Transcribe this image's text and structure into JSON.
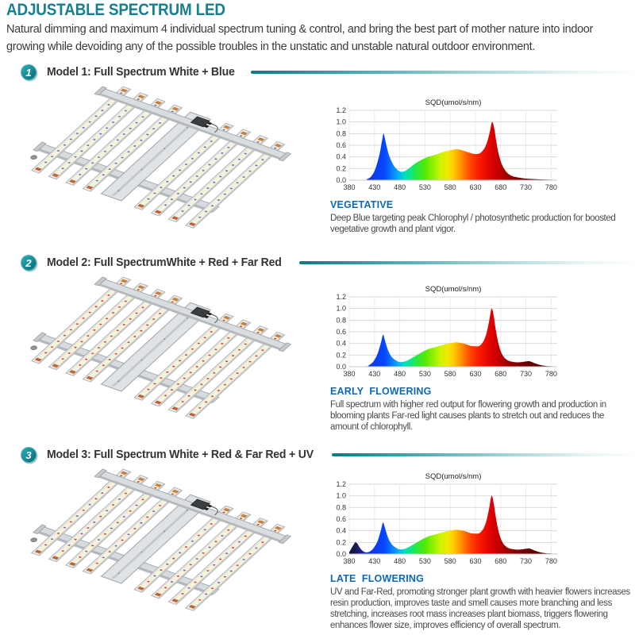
{
  "page": {
    "title": "ADJUSTABLE SPECTRUM LED",
    "intro_lines": [
      "Natural dimming and maximum 4 individual spectrum tuning & control, and bring the best part of mother nature into indoor",
      "growing while devoiding any of the possible troubles in the unstatic and unstable natural outdoor environment."
    ]
  },
  "accent_colors": {
    "heading_teal": "#17808c",
    "divider_teal": "#0d7a85",
    "stage_blue": "#1068b3",
    "body_text": "#3b3b3b"
  },
  "sections": [
    {
      "badge": "1",
      "model_label": "Model 1: Full Spectrum White + Blue",
      "stage": "VEGETATIVE",
      "description": "Deep Blue targeting peak Chlorophyl / photosynthetic production for boosted vegetative growth and plant vigor.",
      "diode_colors": [
        "#5b6ed6"
      ]
    },
    {
      "badge": "2",
      "model_label": "Model 2: Full SpectrumWhite + Red + Far Red",
      "stage": "EARLY  FLOWERING",
      "description": "Full spectrum with higher red output for flowering growth and production in blooming plants Far-red light causes plants to stretch out and reduces the amount of chlorophyll.",
      "diode_colors": [
        "#d04434"
      ]
    },
    {
      "badge": "3",
      "model_label": "Model 3: Full Spectrum White + Red & Far Red + UV",
      "stage": "LATE  FLOWERING",
      "description": "UV and Far-Red, promoting stronger plant growth with heavier flowers increases resin production, improves taste and smell causes more branching and less stretching, increases root mass increases plant biomass, triggers flowering enhances flower size, improves efficiency of overall spectrum.",
      "diode_colors": [
        "#d04434",
        "#7a5ad0"
      ]
    }
  ],
  "spectrum_colors": [
    [
      380,
      "#131327"
    ],
    [
      395,
      "#1b1b5e"
    ],
    [
      410,
      "#1626c8"
    ],
    [
      430,
      "#0b3cf0"
    ],
    [
      450,
      "#0646ff"
    ],
    [
      465,
      "#0a7dff"
    ],
    [
      478,
      "#00b4f0"
    ],
    [
      490,
      "#00ddc0"
    ],
    [
      502,
      "#0ce87e"
    ],
    [
      515,
      "#2fe83c"
    ],
    [
      530,
      "#52e80a"
    ],
    [
      545,
      "#8cf000"
    ],
    [
      560,
      "#c8f400"
    ],
    [
      575,
      "#f2e800"
    ],
    [
      588,
      "#ffc800"
    ],
    [
      600,
      "#ff9600"
    ],
    [
      612,
      "#ff6400"
    ],
    [
      624,
      "#ff3a00"
    ],
    [
      636,
      "#fa1e00"
    ],
    [
      650,
      "#ee0a00"
    ],
    [
      662,
      "#dc0000"
    ],
    [
      675,
      "#c30000"
    ],
    [
      690,
      "#a50000"
    ],
    [
      710,
      "#830000"
    ],
    [
      735,
      "#650000"
    ],
    [
      760,
      "#4e0000"
    ],
    [
      790,
      "#3c0000"
    ]
  ],
  "chart_data": [
    {
      "type": "area",
      "title": "SQD(umol/s/nm)",
      "x_ticks": [
        380,
        430,
        480,
        530,
        580,
        630,
        680,
        730,
        780
      ],
      "y_ticks": [
        0,
        0.2,
        0.4,
        0.6,
        0.8,
        1.0,
        1.2
      ],
      "xlim": [
        380,
        792
      ],
      "ylim": [
        0,
        1.2
      ],
      "grid": true,
      "points": [
        [
          380,
          0
        ],
        [
          408,
          0
        ],
        [
          416,
          0.02
        ],
        [
          424,
          0.07
        ],
        [
          432,
          0.2
        ],
        [
          440,
          0.45
        ],
        [
          445,
          0.68
        ],
        [
          448,
          0.8
        ],
        [
          452,
          0.66
        ],
        [
          458,
          0.45
        ],
        [
          465,
          0.3
        ],
        [
          472,
          0.21
        ],
        [
          480,
          0.15
        ],
        [
          488,
          0.15
        ],
        [
          496,
          0.19
        ],
        [
          505,
          0.25
        ],
        [
          515,
          0.31
        ],
        [
          528,
          0.37
        ],
        [
          540,
          0.41
        ],
        [
          552,
          0.44
        ],
        [
          565,
          0.48
        ],
        [
          578,
          0.51
        ],
        [
          588,
          0.53
        ],
        [
          596,
          0.53
        ],
        [
          605,
          0.51
        ],
        [
          615,
          0.48
        ],
        [
          625,
          0.455
        ],
        [
          633,
          0.45
        ],
        [
          640,
          0.47
        ],
        [
          648,
          0.55
        ],
        [
          654,
          0.68
        ],
        [
          659,
          0.85
        ],
        [
          663,
          1.0
        ],
        [
          667,
          0.9
        ],
        [
          671,
          0.68
        ],
        [
          676,
          0.45
        ],
        [
          682,
          0.28
        ],
        [
          688,
          0.18
        ],
        [
          695,
          0.11
        ],
        [
          703,
          0.07
        ],
        [
          712,
          0.05
        ],
        [
          722,
          0.035
        ],
        [
          735,
          0.025
        ],
        [
          750,
          0.018
        ],
        [
          765,
          0.012
        ],
        [
          780,
          0.008
        ],
        [
          790,
          0.005
        ]
      ]
    },
    {
      "type": "area",
      "title": "SQD(umol/s/nm)",
      "x_ticks": [
        380,
        430,
        480,
        530,
        580,
        630,
        680,
        730,
        780
      ],
      "y_ticks": [
        0,
        0.2,
        0.4,
        0.6,
        0.8,
        1.0,
        1.2
      ],
      "xlim": [
        380,
        792
      ],
      "ylim": [
        0,
        1.2
      ],
      "grid": true,
      "points": [
        [
          380,
          0
        ],
        [
          412,
          0
        ],
        [
          420,
          0.03
        ],
        [
          428,
          0.09
        ],
        [
          436,
          0.22
        ],
        [
          443,
          0.42
        ],
        [
          447,
          0.55
        ],
        [
          451,
          0.44
        ],
        [
          457,
          0.28
        ],
        [
          464,
          0.17
        ],
        [
          472,
          0.11
        ],
        [
          480,
          0.08
        ],
        [
          490,
          0.09
        ],
        [
          500,
          0.13
        ],
        [
          512,
          0.19
        ],
        [
          524,
          0.25
        ],
        [
          536,
          0.3
        ],
        [
          548,
          0.33
        ],
        [
          560,
          0.36
        ],
        [
          572,
          0.39
        ],
        [
          584,
          0.41
        ],
        [
          592,
          0.42
        ],
        [
          600,
          0.41
        ],
        [
          610,
          0.39
        ],
        [
          620,
          0.36
        ],
        [
          630,
          0.35
        ],
        [
          638,
          0.36
        ],
        [
          646,
          0.44
        ],
        [
          652,
          0.58
        ],
        [
          657,
          0.78
        ],
        [
          662,
          1.0
        ],
        [
          666,
          0.88
        ],
        [
          670,
          0.65
        ],
        [
          675,
          0.42
        ],
        [
          680,
          0.27
        ],
        [
          686,
          0.17
        ],
        [
          692,
          0.12
        ],
        [
          698,
          0.095
        ],
        [
          706,
          0.08
        ],
        [
          714,
          0.075
        ],
        [
          722,
          0.08
        ],
        [
          730,
          0.09
        ],
        [
          736,
          0.095
        ],
        [
          742,
          0.08
        ],
        [
          750,
          0.05
        ],
        [
          758,
          0.03
        ],
        [
          768,
          0.015
        ],
        [
          780,
          0.008
        ],
        [
          790,
          0.005
        ]
      ]
    },
    {
      "type": "area",
      "title": "SQD(umol/s/nm)",
      "x_ticks": [
        380,
        430,
        480,
        530,
        580,
        630,
        680,
        730,
        780
      ],
      "y_ticks": [
        0,
        0.2,
        0.4,
        0.6,
        0.8,
        1.0,
        1.2
      ],
      "xlim": [
        380,
        792
      ],
      "ylim": [
        0,
        1.2
      ],
      "grid": true,
      "points": [
        [
          380,
          0.03
        ],
        [
          384,
          0.09
        ],
        [
          388,
          0.15
        ],
        [
          392,
          0.2
        ],
        [
          396,
          0.18
        ],
        [
          400,
          0.12
        ],
        [
          406,
          0.06
        ],
        [
          412,
          0.03
        ],
        [
          420,
          0.04
        ],
        [
          428,
          0.1
        ],
        [
          436,
          0.22
        ],
        [
          443,
          0.42
        ],
        [
          447,
          0.54
        ],
        [
          451,
          0.44
        ],
        [
          457,
          0.28
        ],
        [
          464,
          0.17
        ],
        [
          472,
          0.11
        ],
        [
          480,
          0.08
        ],
        [
          490,
          0.09
        ],
        [
          500,
          0.13
        ],
        [
          512,
          0.19
        ],
        [
          524,
          0.25
        ],
        [
          536,
          0.3
        ],
        [
          548,
          0.33
        ],
        [
          560,
          0.36
        ],
        [
          572,
          0.39
        ],
        [
          584,
          0.41
        ],
        [
          592,
          0.42
        ],
        [
          600,
          0.41
        ],
        [
          610,
          0.39
        ],
        [
          620,
          0.36
        ],
        [
          630,
          0.35
        ],
        [
          638,
          0.36
        ],
        [
          646,
          0.44
        ],
        [
          652,
          0.58
        ],
        [
          657,
          0.78
        ],
        [
          662,
          1.0
        ],
        [
          666,
          0.88
        ],
        [
          670,
          0.65
        ],
        [
          675,
          0.42
        ],
        [
          680,
          0.27
        ],
        [
          686,
          0.17
        ],
        [
          692,
          0.12
        ],
        [
          698,
          0.095
        ],
        [
          706,
          0.08
        ],
        [
          714,
          0.075
        ],
        [
          722,
          0.08
        ],
        [
          730,
          0.09
        ],
        [
          736,
          0.095
        ],
        [
          742,
          0.08
        ],
        [
          750,
          0.05
        ],
        [
          758,
          0.03
        ],
        [
          768,
          0.015
        ],
        [
          780,
          0.008
        ],
        [
          790,
          0.005
        ]
      ]
    }
  ]
}
